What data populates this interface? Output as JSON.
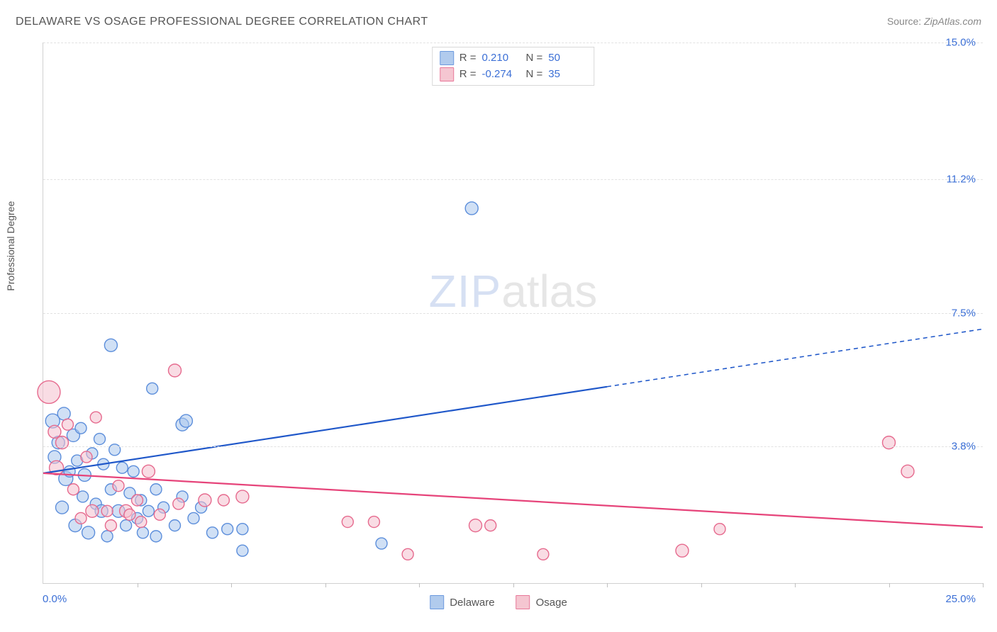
{
  "title": "DELAWARE VS OSAGE PROFESSIONAL DEGREE CORRELATION CHART",
  "source_label": "Source:",
  "source_value": "ZipAtlas.com",
  "y_axis_label": "Professional Degree",
  "watermark_zip": "ZIP",
  "watermark_atlas": "atlas",
  "chart": {
    "type": "scatter",
    "background_color": "#ffffff",
    "grid_color": "#e2e2e2",
    "axis_color": "#d0d0d0",
    "tick_label_color": "#3b6fd6",
    "xlim": [
      0,
      25
    ],
    "ylim": [
      0,
      15
    ],
    "x_origin_label": "0.0%",
    "x_max_label": "25.0%",
    "y_ticks": [
      {
        "v": 3.8,
        "label": "3.8%"
      },
      {
        "v": 7.5,
        "label": "7.5%"
      },
      {
        "v": 11.2,
        "label": "11.2%"
      },
      {
        "v": 15.0,
        "label": "15.0%"
      }
    ],
    "x_tick_positions": [
      2.5,
      5,
      7.5,
      10,
      12.5,
      15,
      17.5,
      20,
      22.5,
      25
    ],
    "series": [
      {
        "name": "Delaware",
        "fill": "#a9c6ec",
        "stroke": "#5c8edb",
        "fill_opacity": 0.55,
        "marker_r_base": 8,
        "regression": {
          "R_label": "R =",
          "R": "0.210",
          "N_label": "N =",
          "N": "50",
          "line_color": "#1f57c9",
          "line_width": 2.2,
          "solid_end_x": 15,
          "y_at_x0": 3.05,
          "y_at_xmax": 7.05
        },
        "points": [
          {
            "x": 0.25,
            "y": 4.5,
            "r": 10
          },
          {
            "x": 0.3,
            "y": 3.5,
            "r": 9
          },
          {
            "x": 0.4,
            "y": 3.9,
            "r": 9
          },
          {
            "x": 0.5,
            "y": 2.1,
            "r": 9
          },
          {
            "x": 0.55,
            "y": 4.7,
            "r": 9
          },
          {
            "x": 0.6,
            "y": 2.9,
            "r": 10
          },
          {
            "x": 0.7,
            "y": 3.1,
            "r": 8
          },
          {
            "x": 0.8,
            "y": 4.1,
            "r": 9
          },
          {
            "x": 0.85,
            "y": 1.6,
            "r": 9
          },
          {
            "x": 0.9,
            "y": 3.4,
            "r": 8
          },
          {
            "x": 1.0,
            "y": 4.3,
            "r": 8
          },
          {
            "x": 1.05,
            "y": 2.4,
            "r": 8
          },
          {
            "x": 1.1,
            "y": 3.0,
            "r": 9
          },
          {
            "x": 1.2,
            "y": 1.4,
            "r": 9
          },
          {
            "x": 1.3,
            "y": 3.6,
            "r": 8
          },
          {
            "x": 1.4,
            "y": 2.2,
            "r": 8
          },
          {
            "x": 1.5,
            "y": 4.0,
            "r": 8
          },
          {
            "x": 1.55,
            "y": 2.0,
            "r": 9
          },
          {
            "x": 1.6,
            "y": 3.3,
            "r": 8
          },
          {
            "x": 1.7,
            "y": 1.3,
            "r": 8
          },
          {
            "x": 1.8,
            "y": 6.6,
            "r": 9
          },
          {
            "x": 1.8,
            "y": 2.6,
            "r": 8
          },
          {
            "x": 1.9,
            "y": 3.7,
            "r": 8
          },
          {
            "x": 2.0,
            "y": 2.0,
            "r": 9
          },
          {
            "x": 2.1,
            "y": 3.2,
            "r": 8
          },
          {
            "x": 2.2,
            "y": 1.6,
            "r": 8
          },
          {
            "x": 2.3,
            "y": 2.5,
            "r": 8
          },
          {
            "x": 2.4,
            "y": 3.1,
            "r": 8
          },
          {
            "x": 2.5,
            "y": 1.8,
            "r": 8
          },
          {
            "x": 2.6,
            "y": 2.3,
            "r": 8
          },
          {
            "x": 2.65,
            "y": 1.4,
            "r": 8
          },
          {
            "x": 2.8,
            "y": 2.0,
            "r": 8
          },
          {
            "x": 2.9,
            "y": 5.4,
            "r": 8
          },
          {
            "x": 3.0,
            "y": 2.6,
            "r": 8
          },
          {
            "x": 3.0,
            "y": 1.3,
            "r": 8
          },
          {
            "x": 3.2,
            "y": 2.1,
            "r": 8
          },
          {
            "x": 3.5,
            "y": 1.6,
            "r": 8
          },
          {
            "x": 3.7,
            "y": 4.4,
            "r": 9
          },
          {
            "x": 3.7,
            "y": 2.4,
            "r": 8
          },
          {
            "x": 3.8,
            "y": 4.5,
            "r": 9
          },
          {
            "x": 4.0,
            "y": 1.8,
            "r": 8
          },
          {
            "x": 4.2,
            "y": 2.1,
            "r": 8
          },
          {
            "x": 4.5,
            "y": 1.4,
            "r": 8
          },
          {
            "x": 4.9,
            "y": 1.5,
            "r": 8
          },
          {
            "x": 5.3,
            "y": 1.5,
            "r": 8
          },
          {
            "x": 5.3,
            "y": 0.9,
            "r": 8
          },
          {
            "x": 9.0,
            "y": 1.1,
            "r": 8
          },
          {
            "x": 11.4,
            "y": 10.4,
            "r": 9
          }
        ]
      },
      {
        "name": "Osage",
        "fill": "#f4c0cd",
        "stroke": "#e66a8e",
        "fill_opacity": 0.55,
        "marker_r_base": 8,
        "regression": {
          "R_label": "R =",
          "R": "-0.274",
          "N_label": "N =",
          "N": "35",
          "line_color": "#e6447a",
          "line_width": 2.2,
          "solid_end_x": 25,
          "y_at_x0": 3.05,
          "y_at_xmax": 1.55
        },
        "points": [
          {
            "x": 0.15,
            "y": 5.3,
            "r": 16
          },
          {
            "x": 0.3,
            "y": 4.2,
            "r": 9
          },
          {
            "x": 0.35,
            "y": 3.2,
            "r": 10
          },
          {
            "x": 0.5,
            "y": 3.9,
            "r": 9
          },
          {
            "x": 0.65,
            "y": 4.4,
            "r": 8
          },
          {
            "x": 0.8,
            "y": 2.6,
            "r": 8
          },
          {
            "x": 1.0,
            "y": 1.8,
            "r": 8
          },
          {
            "x": 1.15,
            "y": 3.5,
            "r": 8
          },
          {
            "x": 1.3,
            "y": 2.0,
            "r": 9
          },
          {
            "x": 1.4,
            "y": 4.6,
            "r": 8
          },
          {
            "x": 1.7,
            "y": 2.0,
            "r": 8
          },
          {
            "x": 1.8,
            "y": 1.6,
            "r": 8
          },
          {
            "x": 2.0,
            "y": 2.7,
            "r": 8
          },
          {
            "x": 2.2,
            "y": 2.0,
            "r": 9
          },
          {
            "x": 2.3,
            "y": 1.9,
            "r": 8
          },
          {
            "x": 2.5,
            "y": 2.3,
            "r": 8
          },
          {
            "x": 2.6,
            "y": 1.7,
            "r": 8
          },
          {
            "x": 2.8,
            "y": 3.1,
            "r": 9
          },
          {
            "x": 3.1,
            "y": 1.9,
            "r": 8
          },
          {
            "x": 3.5,
            "y": 5.9,
            "r": 9
          },
          {
            "x": 3.6,
            "y": 2.2,
            "r": 8
          },
          {
            "x": 4.3,
            "y": 2.3,
            "r": 9
          },
          {
            "x": 4.8,
            "y": 2.3,
            "r": 8
          },
          {
            "x": 5.3,
            "y": 2.4,
            "r": 9
          },
          {
            "x": 8.1,
            "y": 1.7,
            "r": 8
          },
          {
            "x": 8.8,
            "y": 1.7,
            "r": 8
          },
          {
            "x": 9.7,
            "y": 0.8,
            "r": 8
          },
          {
            "x": 11.5,
            "y": 1.6,
            "r": 9
          },
          {
            "x": 11.9,
            "y": 1.6,
            "r": 8
          },
          {
            "x": 13.3,
            "y": 0.8,
            "r": 8
          },
          {
            "x": 17.0,
            "y": 0.9,
            "r": 9
          },
          {
            "x": 18.0,
            "y": 1.5,
            "r": 8
          },
          {
            "x": 22.5,
            "y": 3.9,
            "r": 9
          },
          {
            "x": 23.0,
            "y": 3.1,
            "r": 9
          }
        ]
      }
    ]
  }
}
